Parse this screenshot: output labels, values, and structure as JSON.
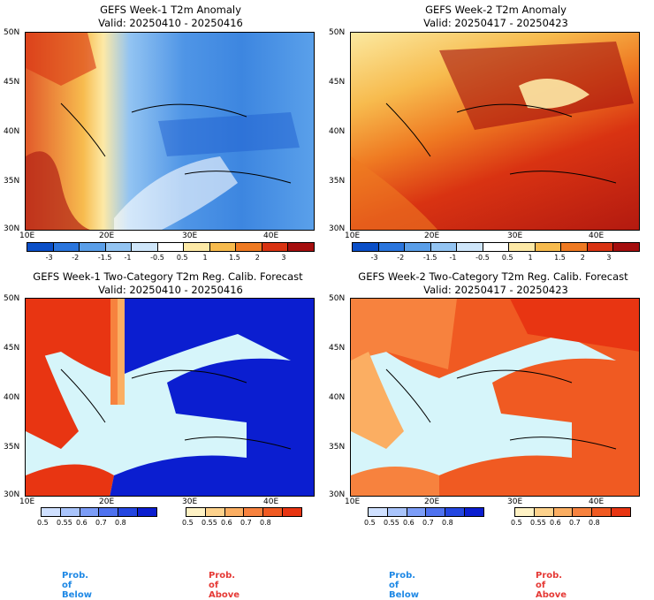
{
  "panels": [
    {
      "title1": "GEFS Week-1 T2m Anomaly",
      "title2": "Valid: 20250410 - 20250416"
    },
    {
      "title1": "GEFS Week-2 T2m Anomaly",
      "title2": "Valid: 20250417 - 20250423"
    },
    {
      "title1": "GEFS Week-1 Two-Category T2m Reg. Calib. Forecast",
      "title2": "Valid: 20250410 - 20250416"
    },
    {
      "title1": "GEFS Week-2 Two-Category T2m Reg. Calib. Forecast",
      "title2": "Valid: 20250417 - 20250423"
    }
  ],
  "lat_labels": [
    "50N",
    "45N",
    "40N",
    "35N",
    "30N"
  ],
  "lon_labels": [
    "10E",
    "20E",
    "30E",
    "40E"
  ],
  "anomaly_ticks": [
    "-3",
    "-2",
    "-1.5",
    "-1",
    "-0.5",
    "0.5",
    "1",
    "1.5",
    "2",
    "3"
  ],
  "anomaly_colors": [
    "#0a4fc8",
    "#2a75dd",
    "#5a9ee8",
    "#93c4f2",
    "#cfe6fa",
    "#ffffff",
    "#fde9a6",
    "#f7bb4e",
    "#ef7a22",
    "#d93312",
    "#a50e0e"
  ],
  "prob_ticks": [
    "0.5",
    "0.55",
    "0.6",
    "0.7",
    "0.8"
  ],
  "below_colors": [
    "#cfe0ff",
    "#a9c4fb",
    "#7c9df7",
    "#4f72ef",
    "#2446e0",
    "#0b1ed0"
  ],
  "above_colors": [
    "#fff2c4",
    "#fdd28c",
    "#fbae62",
    "#f7823e",
    "#f05a22",
    "#e83512"
  ],
  "prob_below_label": "Prob. of Below",
  "prob_above_label": "Prob. of Above",
  "colors": {
    "below_text": "#1e88e5",
    "above_text": "#e53935",
    "sea_prob": "#d6f5fa"
  }
}
